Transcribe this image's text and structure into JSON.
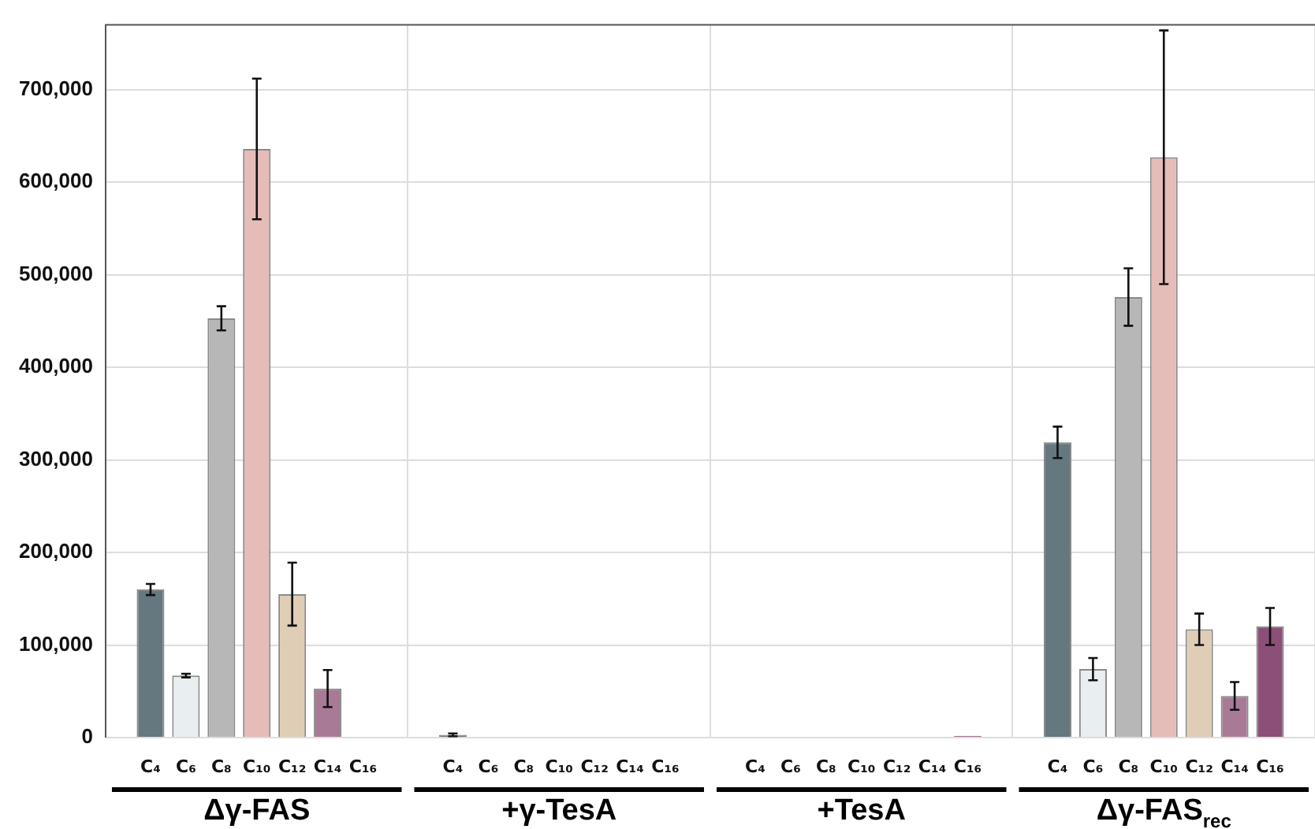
{
  "chart_data": {
    "type": "bar",
    "categories": [
      "Δγ-FAS",
      "+γ-TesA",
      "+TesA",
      "Δγ-FAS$_{rec}$"
    ],
    "series": [
      {
        "name": "C₄",
        "color": "#65777f",
        "values": [
          160000,
          3000,
          0,
          319000
        ],
        "errors": [
          6000,
          1500,
          null,
          17000
        ]
      },
      {
        "name": "C₆",
        "color": "#e9eef0",
        "values": [
          67000,
          0,
          0,
          74000
        ],
        "errors": [
          2000,
          null,
          null,
          12000
        ]
      },
      {
        "name": "C₈",
        "color": "#b7b7b7",
        "values": [
          453000,
          0,
          0,
          476000
        ],
        "errors": [
          13000,
          null,
          null,
          31000
        ]
      },
      {
        "name": "C₁₀",
        "color": "#e5bcb8",
        "values": [
          636000,
          0,
          0,
          627000
        ],
        "errors": [
          76000,
          null,
          null,
          137000
        ]
      },
      {
        "name": "C₁₂",
        "color": "#e0cdb6",
        "values": [
          155000,
          0,
          0,
          117000
        ],
        "errors": [
          34000,
          null,
          null,
          17000
        ]
      },
      {
        "name": "C₁₄",
        "color": "#a87a95",
        "values": [
          53000,
          0,
          0,
          45000
        ],
        "errors": [
          20000,
          null,
          null,
          15000
        ]
      },
      {
        "name": "C₁₆",
        "color": "#8b4f78",
        "values": [
          0,
          0,
          2000,
          120000
        ],
        "errors": [
          null,
          null,
          null,
          20000
        ]
      }
    ],
    "ylim": [
      0,
      770000
    ],
    "yticks": [
      0,
      {
        "value": 100000,
        "label": "100,000"
      },
      {
        "value": 200000,
        "label": "200,000"
      },
      {
        "value": 300000,
        "label": "300,000"
      },
      {
        "value": 400000,
        "label": "400,000"
      },
      {
        "value": 500000,
        "label": "500,000"
      },
      {
        "value": 600000,
        "label": "600,000"
      },
      {
        "value": 700000,
        "label": "700,000"
      }
    ],
    "grid": true,
    "legend": false
  }
}
